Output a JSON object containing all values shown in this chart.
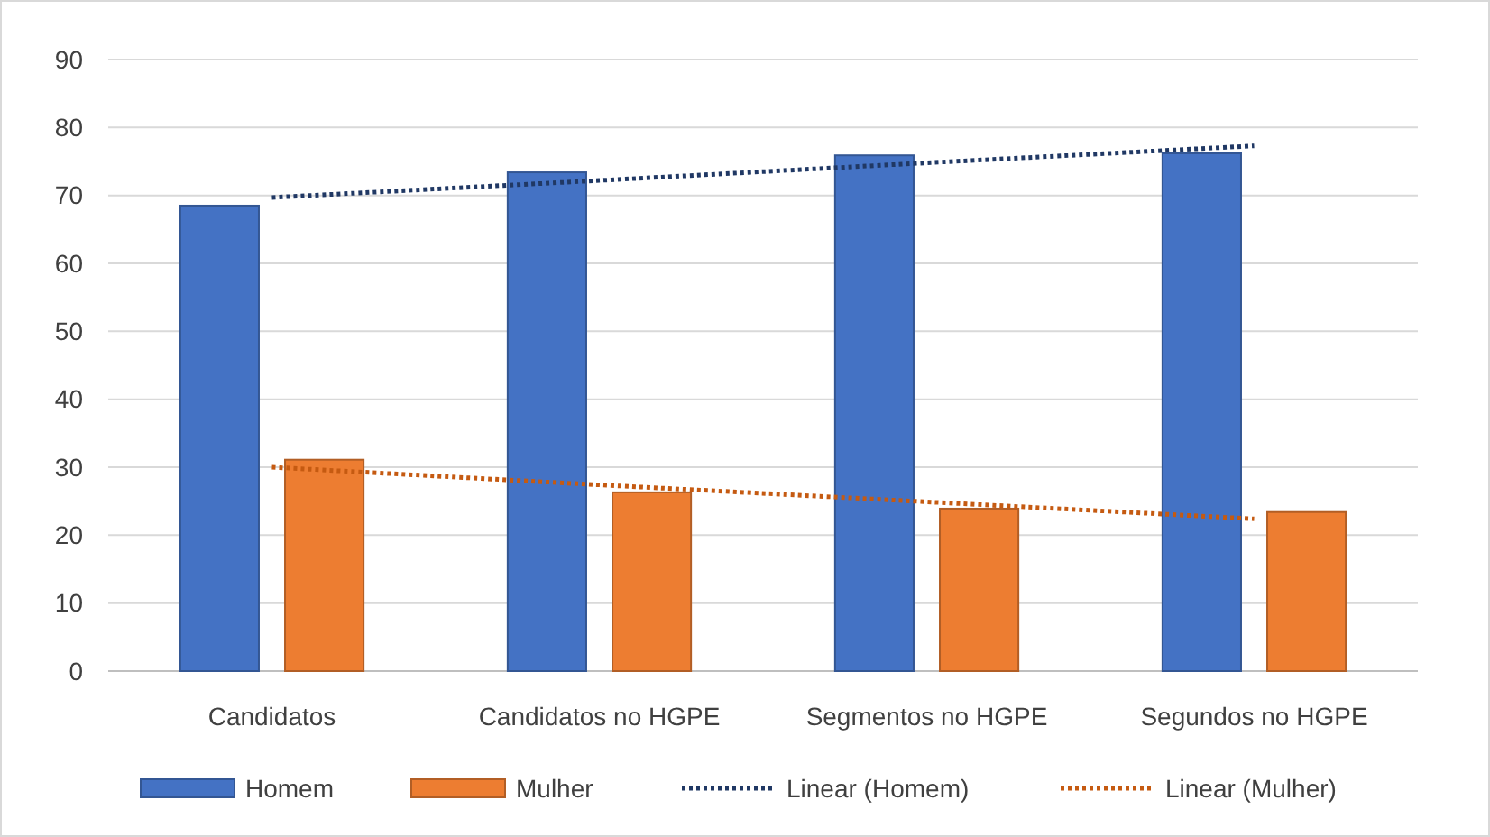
{
  "chart_data": {
    "type": "bar",
    "categories": [
      "Candidatos",
      "Candidatos no HGPE",
      "Segmentos no HGPE",
      "Segundos no HGPE"
    ],
    "series": [
      {
        "name": "Homem",
        "color": "#4472c4",
        "values": [
          68.5,
          73.4,
          75.9,
          76.2
        ]
      },
      {
        "name": "Mulher",
        "color": "#ed7d31",
        "values": [
          31.1,
          26.3,
          23.9,
          23.4
        ]
      },
      {
        "name": "Linear (Homem)",
        "type": "line",
        "color": "#203864",
        "line_style": "dotted",
        "values": [
          69.7,
          72.2,
          74.8,
          77.3
        ]
      },
      {
        "name": "Linear (Mulher)",
        "type": "line",
        "color": "#c55a11",
        "line_style": "dotted",
        "values": [
          30.0,
          27.4,
          24.9,
          22.4
        ]
      }
    ],
    "ylim": [
      0,
      90
    ],
    "yticks": [
      0,
      10,
      20,
      30,
      40,
      50,
      60,
      70,
      80,
      90
    ],
    "grid": "y",
    "legend": "bottom"
  }
}
